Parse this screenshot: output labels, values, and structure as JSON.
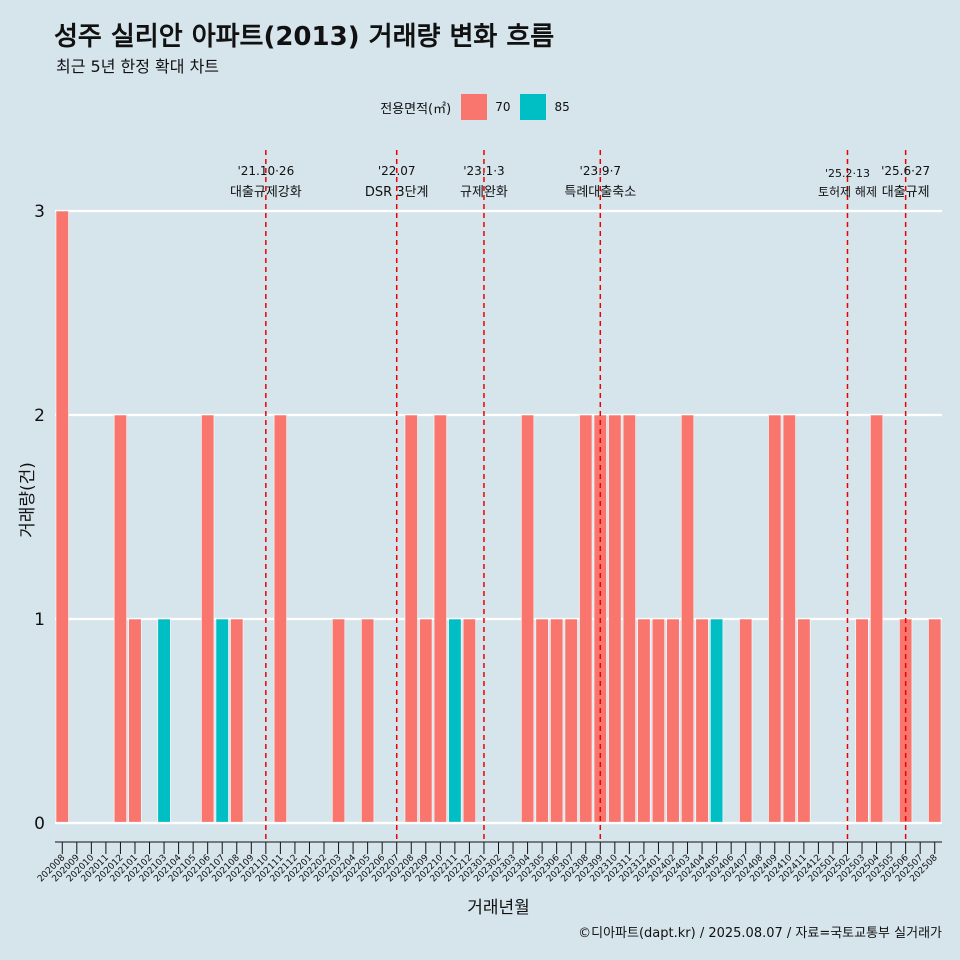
{
  "header": {
    "title": "성주 실리안 아파트(2013) 거래량 변화 흐름",
    "subtitle": "최근 5년 한정 확대 차트"
  },
  "legend": {
    "title": "전용면적(㎡)",
    "items": [
      {
        "label": "70",
        "color": "#f8766d"
      },
      {
        "label": "85",
        "color": "#00bfc4"
      }
    ]
  },
  "caption": "©디아파트(dapt.kr) / 2025.08.07 / 자료=국토교통부 실거래가",
  "chart_data": {
    "type": "bar",
    "stacked": true,
    "xlabel": "거래년월",
    "ylabel": "거래량(건)",
    "ylim": [
      0,
      3
    ],
    "yticks": [
      0,
      1,
      2,
      3
    ],
    "categories": [
      "202008",
      "202009",
      "202010",
      "202011",
      "202012",
      "202101",
      "202102",
      "202103",
      "202104",
      "202105",
      "202106",
      "202107",
      "202108",
      "202109",
      "202110",
      "202111",
      "202112",
      "202201",
      "202202",
      "202203",
      "202204",
      "202205",
      "202206",
      "202207",
      "202208",
      "202209",
      "202210",
      "202211",
      "202212",
      "202301",
      "202302",
      "202303",
      "202304",
      "202305",
      "202306",
      "202307",
      "202308",
      "202309",
      "202310",
      "202311",
      "202312",
      "202401",
      "202402",
      "202403",
      "202404",
      "202405",
      "202406",
      "202407",
      "202408",
      "202409",
      "202410",
      "202411",
      "202412",
      "202501",
      "202502",
      "202503",
      "202504",
      "202505",
      "202506",
      "202507",
      "202508"
    ],
    "series": [
      {
        "name": "70",
        "color": "#f8766d",
        "values": [
          3,
          0,
          0,
          0,
          2,
          1,
          0,
          0,
          0,
          0,
          2,
          0,
          1,
          0,
          0,
          2,
          0,
          0,
          0,
          1,
          0,
          1,
          0,
          0,
          2,
          1,
          2,
          0,
          1,
          0,
          0,
          0,
          2,
          1,
          1,
          1,
          2,
          2,
          2,
          2,
          1,
          1,
          1,
          2,
          1,
          0,
          0,
          1,
          0,
          2,
          2,
          1,
          0,
          0,
          0,
          1,
          2,
          0,
          1,
          0,
          1
        ]
      },
      {
        "name": "85",
        "color": "#00bfc4",
        "values": [
          0,
          0,
          0,
          0,
          0,
          0,
          0,
          1,
          0,
          0,
          0,
          1,
          0,
          0,
          0,
          0,
          0,
          0,
          0,
          0,
          0,
          0,
          0,
          0,
          0,
          0,
          0,
          1,
          0,
          0,
          0,
          0,
          0,
          0,
          0,
          0,
          0,
          0,
          0,
          0,
          0,
          0,
          0,
          0,
          0,
          1,
          0,
          0,
          0,
          0,
          0,
          0,
          0,
          0,
          0,
          0,
          0,
          0,
          0,
          0,
          0
        ]
      }
    ],
    "events": [
      {
        "month": "202110",
        "date": "'21.10·26",
        "label": "대출규제강화"
      },
      {
        "month": "202207",
        "date": "'22.07",
        "label": "DSR 3단계"
      },
      {
        "month": "202301",
        "date": "'23.1·3",
        "label": "규제완화"
      },
      {
        "month": "202309",
        "date": "'23.9·7",
        "label": "특례대출축소"
      },
      {
        "month": "202502",
        "date": "'25.2·13",
        "label": "토허제 해제"
      },
      {
        "month": "202506",
        "date": "'25.6·27",
        "label": "대출규제"
      }
    ],
    "grid": true,
    "legend_position": "top"
  }
}
